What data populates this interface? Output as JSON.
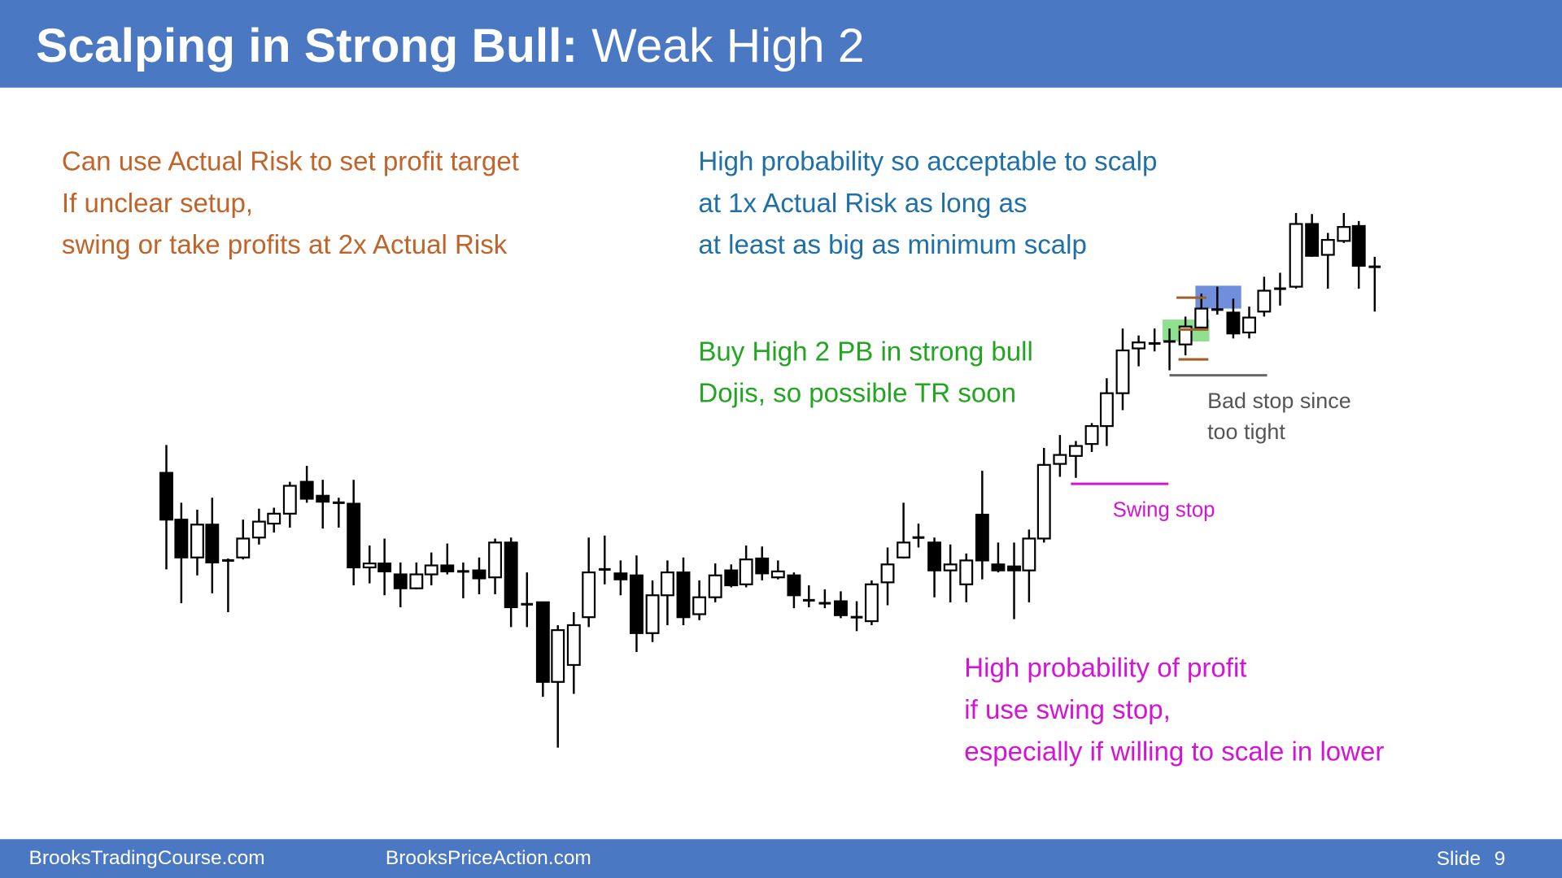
{
  "header": {
    "title_bold": "Scalping in Strong Bull:",
    "title_rest": "Weak High 2"
  },
  "notes": {
    "left": [
      "Can use Actual Risk to set profit target",
      "If unclear setup,",
      "swing or take profits at 2x Actual Risk"
    ],
    "right": [
      "High probability so acceptable to scalp",
      "at 1x Actual Risk as long as",
      "at least as big as minimum scalp"
    ],
    "setup": [
      "Buy High 2 PB in strong bull",
      "Dojis, so possible TR soon"
    ],
    "bad_stop": [
      "Bad stop since",
      "too tight"
    ],
    "swing_stop": "Swing stop",
    "profit": [
      "High probability of profit",
      "if use swing stop,",
      "especially if willing to scale in lower"
    ]
  },
  "footer": {
    "left": "BrooksTradingCourse.com",
    "middle": "BrooksPriceAction.com",
    "slide_label": "Slide",
    "slide_number": "9"
  }
}
